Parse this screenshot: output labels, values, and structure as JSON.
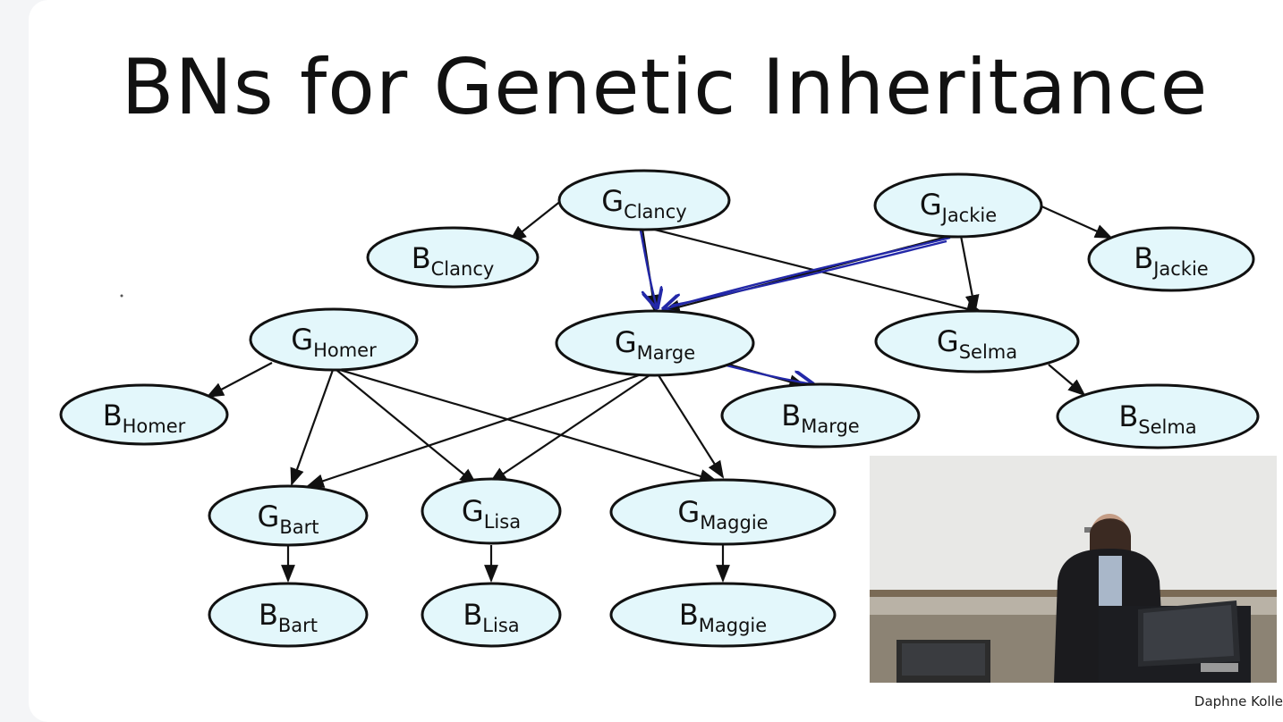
{
  "slide": {
    "title": "BNs for Genetic Inheritance",
    "credit": "Daphne Kolle"
  },
  "nodes": {
    "g_clancy": {
      "main": "G",
      "sub": "Clancy"
    },
    "b_clancy": {
      "main": "B",
      "sub": "Clancy"
    },
    "g_jackie": {
      "main": "G",
      "sub": "Jackie"
    },
    "b_jackie": {
      "main": "B",
      "sub": "Jackie"
    },
    "g_homer": {
      "main": "G",
      "sub": "Homer"
    },
    "b_homer": {
      "main": "B",
      "sub": "Homer"
    },
    "g_marge": {
      "main": "G",
      "sub": "Marge"
    },
    "b_marge": {
      "main": "B",
      "sub": "Marge"
    },
    "g_selma": {
      "main": "G",
      "sub": "Selma"
    },
    "b_selma": {
      "main": "B",
      "sub": "Selma"
    },
    "g_bart": {
      "main": "G",
      "sub": "Bart"
    },
    "b_bart": {
      "main": "B",
      "sub": "Bart"
    },
    "g_lisa": {
      "main": "G",
      "sub": "Lisa"
    },
    "b_lisa": {
      "main": "B",
      "sub": "Lisa"
    },
    "g_maggie": {
      "main": "G",
      "sub": "Maggie"
    },
    "b_maggie": {
      "main": "B",
      "sub": "Maggie"
    }
  },
  "edges": [
    {
      "from": "G Clancy",
      "to": "B Clancy"
    },
    {
      "from": "G Clancy",
      "to": "G Marge"
    },
    {
      "from": "G Clancy",
      "to": "G Selma"
    },
    {
      "from": "G Jackie",
      "to": "B Jackie"
    },
    {
      "from": "G Jackie",
      "to": "G Marge"
    },
    {
      "from": "G Jackie",
      "to": "G Selma"
    },
    {
      "from": "G Homer",
      "to": "B Homer"
    },
    {
      "from": "G Homer",
      "to": "G Bart"
    },
    {
      "from": "G Homer",
      "to": "G Lisa"
    },
    {
      "from": "G Homer",
      "to": "G Maggie"
    },
    {
      "from": "G Marge",
      "to": "B Marge"
    },
    {
      "from": "G Marge",
      "to": "G Bart"
    },
    {
      "from": "G Marge",
      "to": "G Lisa"
    },
    {
      "from": "G Marge",
      "to": "G Maggie"
    },
    {
      "from": "G Selma",
      "to": "B Selma"
    },
    {
      "from": "G Bart",
      "to": "B Bart"
    },
    {
      "from": "G Lisa",
      "to": "B Lisa"
    },
    {
      "from": "G Maggie",
      "to": "B Maggie"
    }
  ],
  "annotation_color": "#2328a8",
  "node_fill": "#e3f7fb",
  "video": {
    "content": "lecturer at podium in front of whiteboard"
  }
}
